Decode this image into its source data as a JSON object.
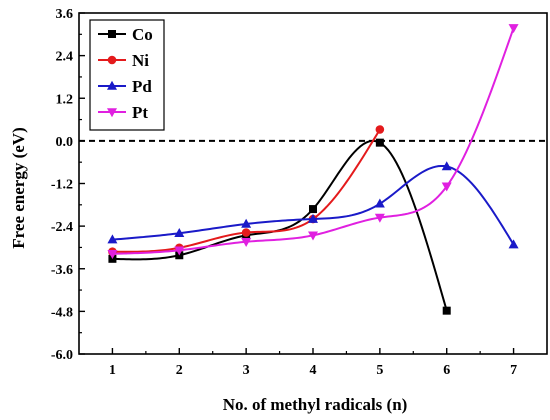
{
  "chart_data": {
    "type": "line",
    "xlabel": "No. of methyl radicals (n)",
    "ylabel": "Free energy (eV)",
    "xlim": [
      0.5,
      7.5
    ],
    "ylim": [
      -6.0,
      3.6
    ],
    "x_ticks": [
      1,
      2,
      3,
      4,
      5,
      6,
      7
    ],
    "y_ticks": [
      3.6,
      2.4,
      1.2,
      0.0,
      -1.2,
      -2.4,
      -3.6,
      -4.8,
      -6.0
    ],
    "y_tick_labels": [
      "3.6",
      "2.4",
      "1.2",
      "0.0",
      "-1.2",
      "-2.4",
      "-3.6",
      "-4.8",
      "-6.0"
    ],
    "reference_line": {
      "y": 0.0,
      "style": "dashed"
    },
    "grid": false,
    "legend_position": "top-left",
    "series": [
      {
        "name": "Co",
        "color": "#000000",
        "marker": "square",
        "x": [
          1,
          2,
          3,
          4,
          5,
          6
        ],
        "y": [
          -3.32,
          -3.22,
          -2.66,
          -1.92,
          -0.05,
          -4.78
        ]
      },
      {
        "name": "Ni",
        "color": "#e41a1c",
        "marker": "circle",
        "x": [
          1,
          2,
          3,
          4,
          5
        ],
        "y": [
          -3.12,
          -3.01,
          -2.58,
          -2.2,
          0.32
        ]
      },
      {
        "name": "Pd",
        "color": "#1a1ac8",
        "marker": "triangle-up",
        "x": [
          1,
          2,
          3,
          4,
          5,
          6,
          7
        ],
        "y": [
          -2.78,
          -2.6,
          -2.34,
          -2.2,
          -1.77,
          -0.72,
          -2.92
        ]
      },
      {
        "name": "Pt",
        "color": "#e020e0",
        "marker": "triangle-down",
        "x": [
          1,
          2,
          3,
          4,
          5,
          6,
          7
        ],
        "y": [
          -3.18,
          -3.08,
          -2.84,
          -2.66,
          -2.16,
          -1.28,
          3.18
        ]
      }
    ]
  }
}
